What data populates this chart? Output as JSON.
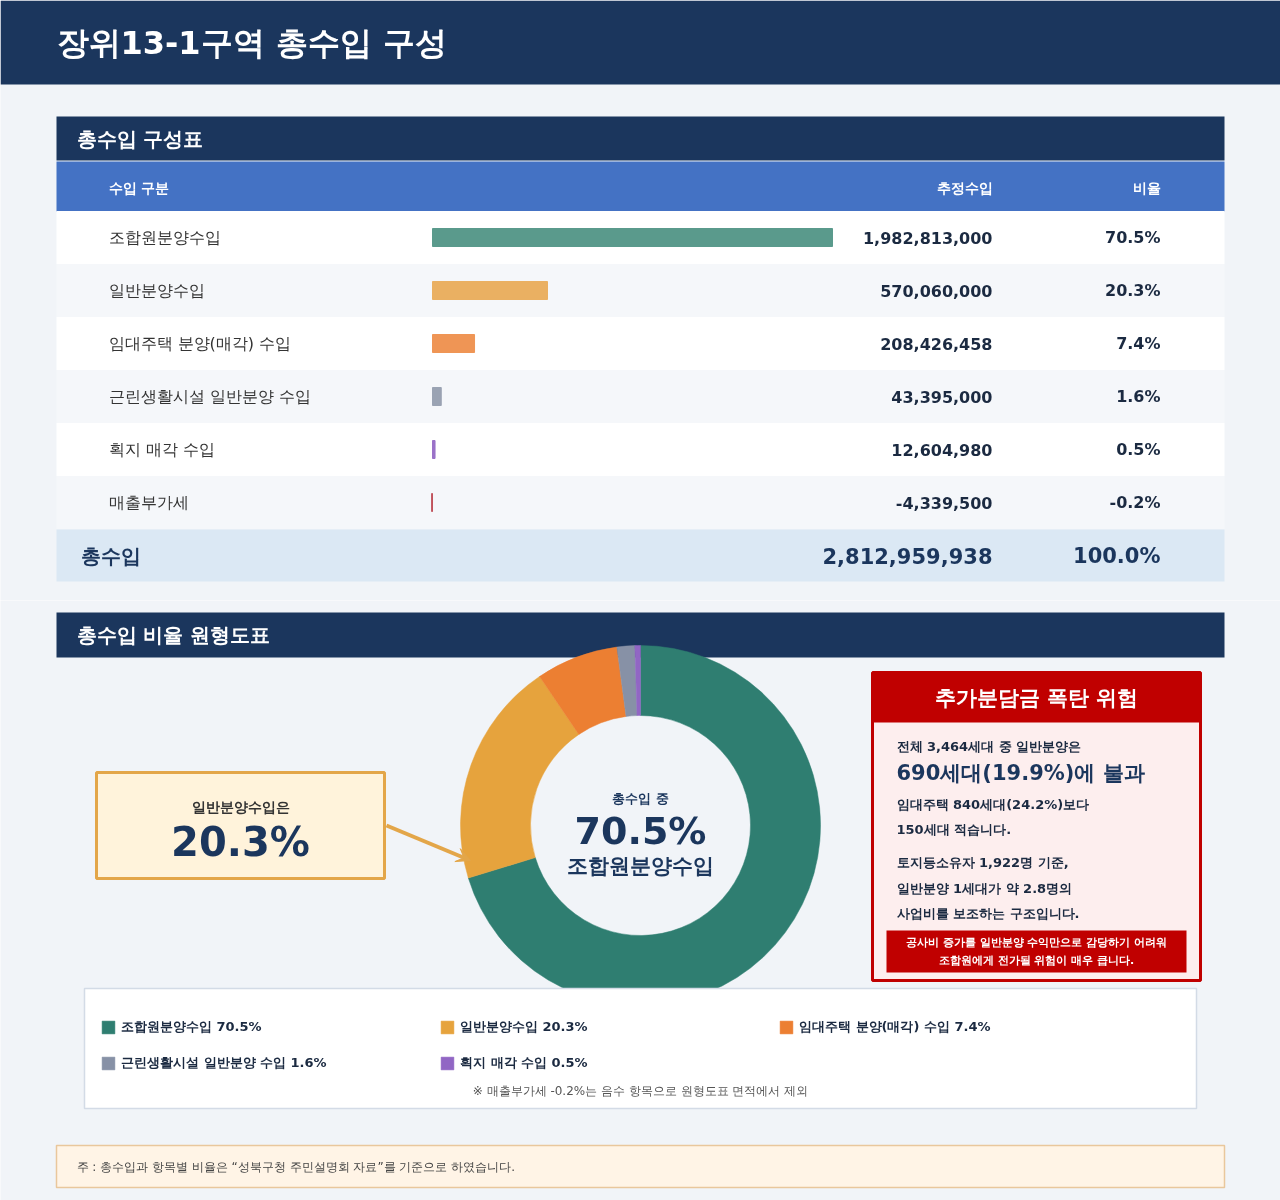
{
  "chart_data": [
    {
      "type": "bar",
      "orientation": "horizontal",
      "title": "장위13-1구역 총수입 구성",
      "subtitle": "총수입 구성표",
      "categories": [
        "조합원분양수입",
        "일반분양수입",
        "임대주택 분양(매각) 수입",
        "근린생활시설 일반분양 수입",
        "획지 매각 수입",
        "매출부가세"
      ],
      "values": [
        1982813000,
        570060000,
        208426458,
        43395000,
        12604980,
        -4339500
      ],
      "colors": [
        "#5a9a8c",
        "#eab062",
        "#ef9555",
        "#9aa3b3",
        "#9b72c8",
        "#c0525c"
      ],
      "value_labels": [
        "1,982,813,000",
        "570,060,000",
        "208,426,458",
        "43,395,000",
        "12,604,980",
        "-4,339,500"
      ],
      "annotations": [
        "수입 구분",
        "추정수입",
        "비율",
        "70.5%",
        "20.3%",
        "7.4%",
        "1.6%",
        "0.5%",
        "-0.2%",
        "총수입",
        "2,812,959,938",
        "100.0%"
      ]
    },
    {
      "type": "donut",
      "title": "총수입 비율 원형도표",
      "categories": [
        "조합원분양수입 70.5%",
        "일반분양수입 20.3%",
        "임대주택 분양(매각) 수입 7.4%",
        "근린생활시설 일반분양 수입 1.6%",
        "획지 매각 수입 0.5%"
      ],
      "values": [
        70.5,
        20.3,
        7.4,
        1.6,
        0.5
      ],
      "colors": [
        "#2f7e71",
        "#e6a33d",
        "#ec7f32",
        "#8791a6",
        "#9166c4"
      ],
      "legend": "bottom",
      "annotations": [
        "총수입 중",
        "70.5%",
        "조합원분양수입",
        "일반분양수입은",
        "20.3%",
        "추가분담금 폭탄 위험",
        "전체 3,464세대 중 일반분양은",
        "690세대(19.9%)에 불과",
        "임대주택 840세대(24.2%)보다",
        "150세대 적습니다.",
        "토지등소유자 1,922명 기준,",
        "일반분양 1세대가 약 2.8명의",
        "사업비를 보조하는 구조입니다.",
        "공사비 증가를 일반분양 수익만으로 감당하기 어려워",
        "조합원에게 전가될 위험이 매우 큽니다.",
        "※ 매출부가세 -0.2%는 음수 항목으로 원형도표 면적에서 제외",
        "주 : 총수입과 항목별 비율은 “성북구청 주민설명회 자료”를 기준으로 하였습니다."
      ]
    }
  ]
}
